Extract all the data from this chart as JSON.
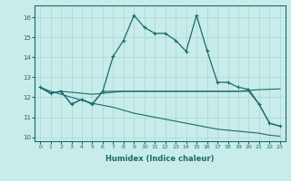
{
  "xlabel": "Humidex (Indice chaleur)",
  "ylabel": "",
  "background_color": "#c8ecea",
  "grid_color": "#aad4d0",
  "line_color": "#1a6b6b",
  "xlim": [
    -0.5,
    23.5
  ],
  "ylim": [
    9.8,
    16.6
  ],
  "yticks": [
    10,
    11,
    12,
    13,
    14,
    15,
    16
  ],
  "xticks": [
    0,
    1,
    2,
    3,
    4,
    5,
    6,
    7,
    8,
    9,
    10,
    11,
    12,
    13,
    14,
    15,
    16,
    17,
    18,
    19,
    20,
    21,
    22,
    23
  ],
  "main_x": [
    0,
    1,
    2,
    3,
    4,
    5,
    6,
    7,
    8,
    9,
    10,
    11,
    12,
    13,
    14,
    15,
    16,
    17,
    18,
    19,
    20,
    21,
    22,
    23
  ],
  "main_y": [
    12.5,
    12.2,
    12.3,
    11.65,
    11.9,
    11.65,
    12.3,
    14.05,
    14.85,
    16.1,
    15.5,
    15.2,
    15.2,
    14.85,
    14.3,
    16.1,
    14.35,
    12.75,
    12.75,
    12.5,
    12.4,
    11.65,
    10.7,
    10.55
  ],
  "flat_x": [
    0,
    1,
    2,
    3,
    4,
    5,
    6,
    7,
    8,
    9,
    10,
    11,
    12,
    13,
    14,
    15,
    16,
    17,
    18,
    19,
    20,
    21,
    22,
    23
  ],
  "flat_y": [
    12.5,
    12.2,
    12.3,
    12.25,
    12.2,
    12.15,
    12.2,
    12.25,
    12.3,
    12.3,
    12.3,
    12.3,
    12.3,
    12.3,
    12.3,
    12.3,
    12.3,
    12.3,
    12.3,
    12.3,
    12.35,
    12.38,
    12.4,
    12.42
  ],
  "decline1_x": [
    0,
    1,
    2,
    3,
    4,
    5,
    6,
    7,
    8,
    9,
    10,
    11,
    12,
    13,
    14,
    15,
    16,
    17,
    18,
    19,
    20,
    21,
    22,
    23
  ],
  "decline1_y": [
    12.5,
    12.3,
    12.15,
    12.0,
    11.85,
    11.7,
    11.6,
    11.5,
    11.35,
    11.2,
    11.1,
    11.0,
    10.9,
    10.8,
    10.7,
    10.6,
    10.5,
    10.4,
    10.35,
    10.3,
    10.25,
    10.2,
    10.1,
    10.05
  ],
  "wave_x": [
    0,
    1,
    2,
    3,
    4,
    5,
    6,
    18,
    19,
    20,
    21,
    22,
    23
  ],
  "wave_y": [
    12.5,
    12.2,
    12.3,
    11.65,
    11.9,
    11.65,
    12.3,
    12.3,
    12.3,
    12.3,
    11.65,
    10.7,
    10.55
  ]
}
